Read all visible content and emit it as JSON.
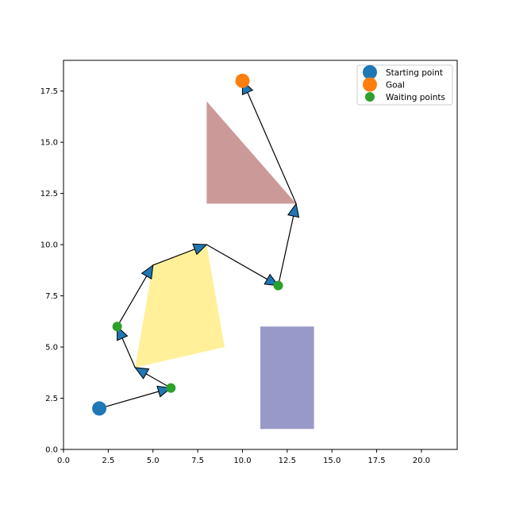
{
  "chart_data": {
    "type": "scatter",
    "title": "",
    "xlabel": "",
    "ylabel": "",
    "xlim": [
      0,
      22
    ],
    "ylim": [
      0,
      19
    ],
    "grid": false,
    "legend_position": "top-right",
    "xticks": [
      0.0,
      2.5,
      5.0,
      7.5,
      10.0,
      12.5,
      15.0,
      17.5,
      20.0
    ],
    "yticks": [
      0.0,
      2.5,
      5.0,
      7.5,
      10.0,
      12.5,
      15.0,
      17.5
    ],
    "xtick_labels": [
      "0.0",
      "2.5",
      "5.0",
      "7.5",
      "10.0",
      "12.5",
      "15.0",
      "17.5",
      "20.0"
    ],
    "ytick_labels": [
      "0.0",
      "2.5",
      "5.0",
      "7.5",
      "10.0",
      "12.5",
      "15.0",
      "17.5"
    ],
    "obstacles": [
      {
        "shape": "triangle",
        "color": "#cc9999",
        "points": [
          [
            8,
            17
          ],
          [
            8,
            12
          ],
          [
            13,
            12
          ]
        ]
      },
      {
        "shape": "quadrilateral",
        "color": "#fff099",
        "points": [
          [
            5,
            9
          ],
          [
            8,
            10
          ],
          [
            9,
            5
          ],
          [
            4,
            4
          ]
        ]
      },
      {
        "shape": "rectangle",
        "color": "#9999c9",
        "points": [
          [
            11,
            1
          ],
          [
            14,
            1
          ],
          [
            14,
            6
          ],
          [
            11,
            6
          ]
        ]
      }
    ],
    "path": [
      [
        2,
        2
      ],
      [
        6,
        3
      ],
      [
        4,
        4
      ],
      [
        3,
        6
      ],
      [
        5,
        9
      ],
      [
        8,
        10
      ],
      [
        12,
        8
      ],
      [
        13,
        12
      ],
      [
        10,
        18
      ]
    ],
    "series": [
      {
        "name": "Starting point",
        "color": "#1f77b4",
        "points": [
          [
            2,
            2
          ]
        ]
      },
      {
        "name": "Goal",
        "color": "#ff7f0e",
        "points": [
          [
            10,
            18
          ]
        ]
      },
      {
        "name": "Waiting points",
        "color": "#2ca02c",
        "points": [
          [
            6,
            3
          ],
          [
            3,
            6
          ],
          [
            12,
            8
          ]
        ]
      }
    ],
    "arrow_color": "#1f77b4"
  }
}
